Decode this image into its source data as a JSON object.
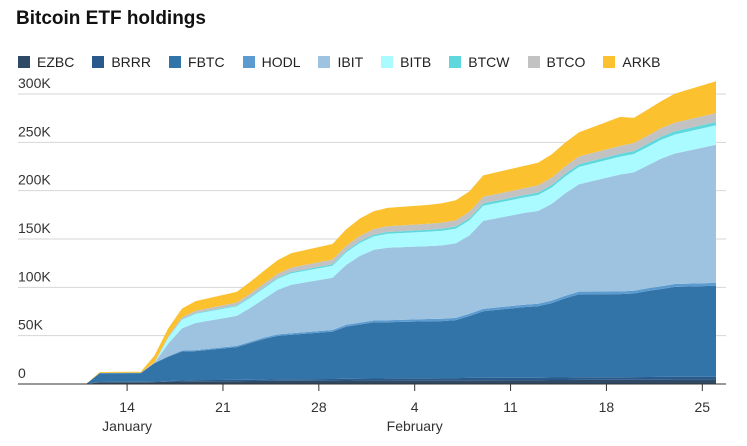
{
  "chart_data": {
    "type": "area",
    "title": "Bitcoin ETF holdings",
    "x": [
      10,
      11,
      12,
      13,
      14,
      15,
      16,
      17,
      18,
      19,
      20,
      21,
      22,
      23,
      24,
      25,
      26,
      27,
      28,
      29,
      30,
      31,
      32,
      33,
      34,
      35,
      36,
      37,
      38,
      39,
      40,
      41,
      42,
      43,
      44,
      45,
      46,
      47,
      48,
      49,
      50,
      51,
      52,
      53,
      54,
      55,
      56,
      57,
      58,
      59,
      60,
      61,
      62,
      63,
      64,
      65,
      66,
      67,
      68,
      69,
      70,
      71,
      72,
      73,
      74,
      75,
      76,
      77,
      78,
      79,
      80,
      81,
      82,
      83,
      84,
      85,
      86,
      87,
      88,
      89,
      90,
      91,
      92,
      93,
      94,
      95,
      96,
      97,
      98,
      99,
      100,
      101,
      102,
      103,
      104,
      105,
      106,
      107,
      108,
      109,
      110,
      111,
      112,
      113,
      114,
      115,
      116,
      117,
      118,
      119,
      120,
      121,
      122,
      123,
      124,
      125,
      126,
      127,
      128,
      129,
      130,
      131,
      132,
      133,
      134,
      135,
      136,
      137,
      138,
      139,
      140,
      141,
      142,
      143,
      144,
      145,
      146,
      147,
      148,
      149,
      150,
      151,
      152,
      153,
      154,
      155,
      156,
      157,
      158,
      159,
      160,
      161,
      162,
      163,
      164,
      165,
      166,
      167,
      168,
      169,
      170,
      171,
      172,
      173,
      174,
      175,
      176,
      177,
      178,
      179,
      180,
      181,
      182,
      183,
      184,
      185,
      186,
      187,
      188,
      189,
      190,
      191,
      192,
      193,
      194,
      195,
      196,
      197,
      198,
      199,
      200
    ],
    "x_ticks": [
      {
        "pos": 14,
        "label": "14",
        "month": "January"
      },
      {
        "pos": 21,
        "label": "21",
        "month": ""
      },
      {
        "pos": 28,
        "label": "28",
        "month": ""
      },
      {
        "pos": 35,
        "label": "4",
        "month": "February"
      },
      {
        "pos": 42,
        "label": "11",
        "month": ""
      },
      {
        "pos": 49,
        "label": "18",
        "month": ""
      },
      {
        "pos": 56,
        "label": "25",
        "month": ""
      }
    ],
    "dates": [
      11,
      12,
      13,
      15,
      16,
      17,
      18,
      19,
      22,
      23,
      24,
      25,
      26,
      29,
      30,
      31,
      32,
      33,
      36,
      37,
      38,
      39,
      40,
      43,
      44,
      45,
      46,
      47,
      50,
      51,
      52,
      53,
      54,
      57
    ],
    "series": [
      {
        "name": "EZBC",
        "color": "#2e4a66",
        "values": [
          0,
          1800,
          1900,
          1900,
          2000,
          2400,
          2700,
          2900,
          3000,
          3100,
          3200,
          3300,
          3400,
          3500,
          3600,
          3700,
          3700,
          3700,
          3800,
          3800,
          3800,
          3900,
          3900,
          4000,
          4000,
          4100,
          4100,
          4200,
          4300,
          4300,
          4400,
          4400,
          4500,
          4600
        ]
      },
      {
        "name": "BRRR",
        "color": "#2a5a8c",
        "values": [
          0,
          300,
          300,
          400,
          500,
          700,
          900,
          1100,
          1200,
          1300,
          1400,
          1500,
          1600,
          1700,
          1800,
          1900,
          2000,
          2100,
          2200,
          2300,
          2300,
          2400,
          2400,
          2500,
          2500,
          2600,
          2600,
          2700,
          2700,
          2800,
          2800,
          2900,
          2900,
          3000
        ]
      },
      {
        "name": "FBTC",
        "color": "#3274a8",
        "values": [
          0,
          9000,
          9000,
          9000,
          19000,
          25000,
          30000,
          30000,
          34000,
          38000,
          42000,
          45000,
          46000,
          49000,
          54000,
          56000,
          58000,
          58000,
          59000,
          59000,
          60000,
          64000,
          69000,
          73000,
          74000,
          77000,
          82000,
          86000,
          86000,
          86500,
          89000,
          91000,
          93000,
          94000
        ]
      },
      {
        "name": "HODL",
        "color": "#5b9bd0",
        "values": [
          0,
          300,
          300,
          400,
          500,
          700,
          900,
          1100,
          1200,
          1300,
          1400,
          1500,
          1600,
          1700,
          1800,
          1900,
          2000,
          2100,
          2200,
          2300,
          2300,
          2400,
          2400,
          2500,
          2500,
          2600,
          2600,
          2700,
          2700,
          2800,
          2800,
          2900,
          3000,
          3000
        ]
      },
      {
        "name": "IBIT",
        "color": "#9dc3e0",
        "values": [
          0,
          0,
          0,
          0,
          0,
          13000,
          23000,
          28000,
          31000,
          35000,
          40000,
          46000,
          50000,
          54000,
          62000,
          69000,
          73000,
          75000,
          75500,
          76000,
          77000,
          81000,
          91000,
          95000,
          96000,
          100000,
          106000,
          111000,
          121000,
          122500,
          127000,
          132000,
          135000,
          143000
        ]
      },
      {
        "name": "BITB",
        "color": "#a9fbff",
        "values": [
          0,
          0,
          0,
          0,
          0,
          6000,
          9000,
          9500,
          10000,
          10500,
          11000,
          11500,
          12000,
          12500,
          13000,
          13500,
          14000,
          14500,
          15000,
          15200,
          15400,
          15600,
          15800,
          16000,
          16500,
          17000,
          17500,
          18000,
          18500,
          19000,
          19200,
          19500,
          19700,
          20000
        ]
      },
      {
        "name": "BTCW",
        "color": "#5ed7dd",
        "values": [
          0,
          0,
          0,
          0,
          0,
          200,
          500,
          700,
          900,
          1000,
          1100,
          1200,
          1300,
          1400,
          1500,
          1600,
          1700,
          1800,
          1900,
          2000,
          2100,
          2200,
          2300,
          2400,
          2500,
          2600,
          2700,
          2800,
          2900,
          3000,
          3100,
          3200,
          3300,
          3400
        ]
      },
      {
        "name": "BTCO",
        "color": "#c2c2c2",
        "values": [
          0,
          0,
          0,
          0,
          500,
          1500,
          2000,
          2500,
          3000,
          3500,
          4000,
          4200,
          4500,
          5000,
          5300,
          5600,
          5800,
          6000,
          6200,
          6400,
          6600,
          6800,
          7000,
          7200,
          7400,
          7600,
          7800,
          8000,
          8200,
          8400,
          8600,
          8800,
          9000,
          9200
        ]
      },
      {
        "name": "ARKB",
        "color": "#fcc12e",
        "values": [
          0,
          900,
          1000,
          1000,
          7000,
          8000,
          9000,
          10000,
          11000,
          12000,
          13000,
          14000,
          15000,
          16000,
          17000,
          18000,
          18500,
          19000,
          19500,
          20000,
          20500,
          21000,
          22000,
          23000,
          23500,
          24000,
          24500,
          25000,
          30000,
          26000,
          27000,
          28000,
          30000,
          33000
        ]
      }
    ],
    "ylim": [
      0,
      300000
    ],
    "y_ticks": [
      0,
      50000,
      100000,
      150000,
      200000,
      250000,
      300000
    ],
    "y_tick_labels": [
      "0",
      "50K",
      "100K",
      "150K",
      "200K",
      "250K",
      "300K"
    ],
    "grid": true,
    "legend_position": "top"
  }
}
